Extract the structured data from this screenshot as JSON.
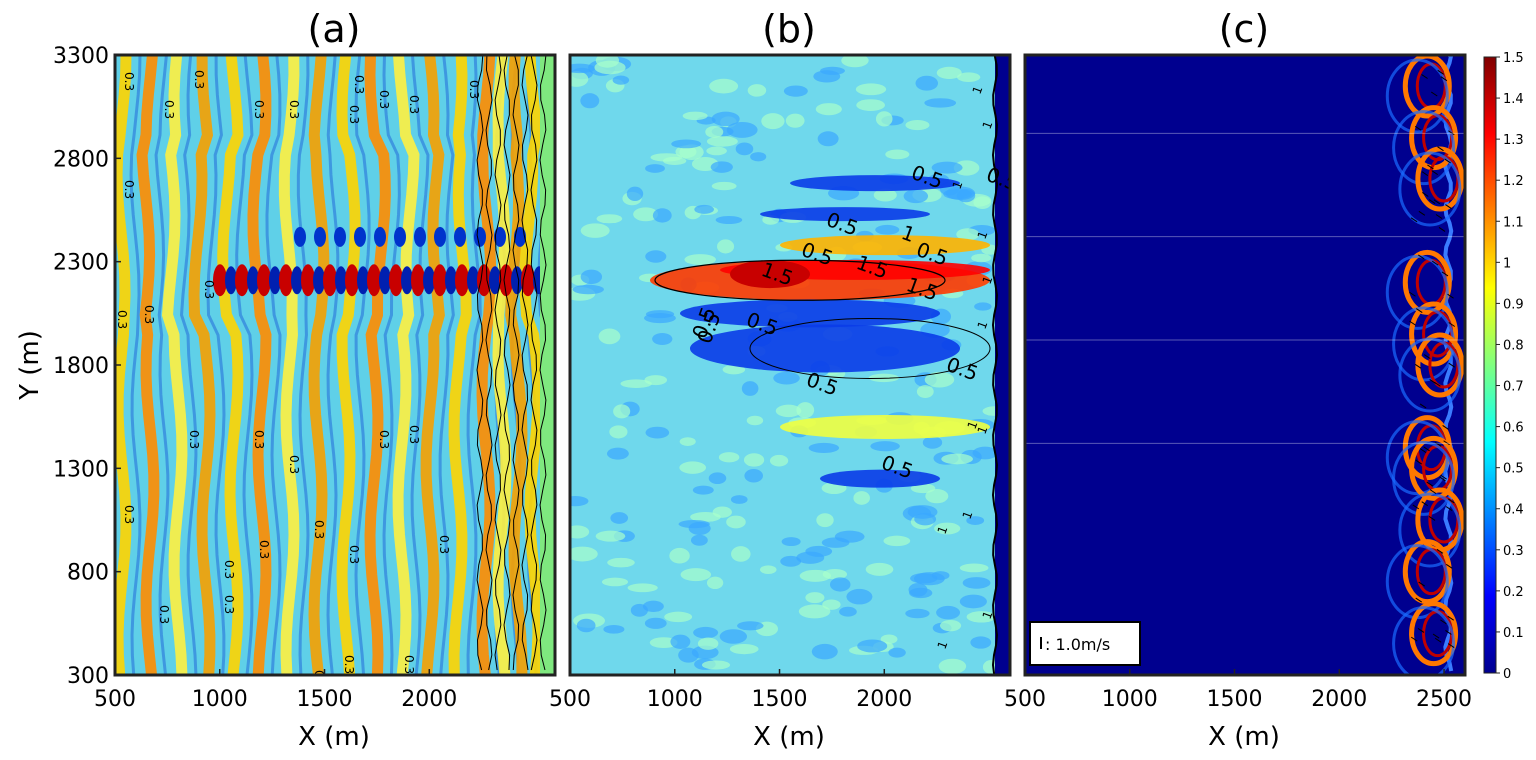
{
  "chart_data": [
    {
      "type": "heatmap",
      "panel_label": "(a)",
      "xlabel": "X (m)",
      "ylabel": "Y (m)",
      "xlim": [
        500,
        2600
      ],
      "ylim": [
        300,
        3300
      ],
      "xticks": [
        500,
        1000,
        1500,
        2000
      ],
      "yticks": [
        300,
        800,
        1300,
        1800,
        2300,
        2800,
        3300
      ],
      "contour_labels": [
        "0.3"
      ],
      "colormap": "jet",
      "shoreline_x": 2530
    },
    {
      "type": "heatmap",
      "panel_label": "(b)",
      "xlabel": "X (m)",
      "xlim": [
        500,
        2600
      ],
      "ylim": [
        300,
        3300
      ],
      "xticks": [
        500,
        1000,
        1500,
        2000
      ],
      "contour_labels": [
        "0.5",
        "1",
        "1.5"
      ],
      "colormap": "jet",
      "shoreline_x": 2530
    },
    {
      "type": "heatmap",
      "panel_label": "(c)",
      "xlabel": "X (m)",
      "xlim": [
        500,
        2600
      ],
      "ylim": [
        300,
        3300
      ],
      "xticks": [
        500,
        1000,
        1500,
        2000,
        2500
      ],
      "legend": {
        "text": ": 1.0m/s",
        "location": "bottom-left"
      },
      "colormap": "jet",
      "colorbar": {
        "min": 0,
        "max": 1.5,
        "ticks": [
          "0",
          "0.1",
          "0.2",
          "0.3",
          "0.4",
          "0.5",
          "0.6",
          "0.7",
          "0.8",
          "0.9",
          "1",
          "1.1",
          "1.2",
          "1.3",
          "1.4",
          "1.5"
        ]
      },
      "current_features_y": [
        3150,
        2900,
        2700,
        2200,
        1950,
        1800,
        1400,
        1300,
        1050,
        800,
        500
      ]
    }
  ],
  "colors": {
    "jet_0": "#00008f",
    "jet_1": "#0000ff",
    "jet_2": "#00ffff",
    "jet_3": "#ffff00",
    "jet_4": "#ff0000",
    "jet_5": "#800000"
  }
}
